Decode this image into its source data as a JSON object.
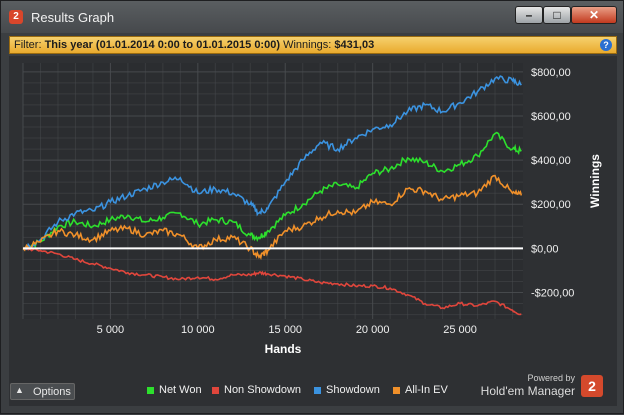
{
  "window": {
    "title": "Results Graph",
    "app_icon": "2",
    "controls": {
      "minimize": "–",
      "maximize": "□",
      "close": "✕"
    }
  },
  "filter": {
    "label": "Filter:",
    "value": "This year (01.01.2014 0:00 to 01.01.2015 0:00)",
    "winnings_label": "Winnings:",
    "winnings_value": "$431,03",
    "help_icon": "?"
  },
  "options_label": "Options",
  "brand": {
    "powered_by": "Powered by",
    "name": "Hold'em Manager",
    "badge": "2"
  },
  "colors": {
    "net_won": "#2de02d",
    "non_showdown": "#e0463c",
    "showdown": "#3b93e0",
    "all_in_ev": "#f0902a",
    "zero_line": "#ffffff",
    "grid": "#4a4d50",
    "accent_bar": "#f0b73c"
  },
  "chart_data": {
    "type": "line",
    "xlabel": "Hands",
    "ylabel": "Winnings",
    "xlim": [
      0,
      28600
    ],
    "ylim": [
      -320,
      840
    ],
    "x_ticks": [
      5000,
      10000,
      15000,
      20000,
      25000
    ],
    "x_tick_labels": [
      "5 000",
      "10 000",
      "15 000",
      "20 000",
      "25 000"
    ],
    "y_ticks": [
      -200,
      0,
      200,
      400,
      600,
      800
    ],
    "y_tick_labels": [
      "-$200,00",
      "$0,00",
      "$200,00",
      "$400,00",
      "$600,00",
      "$800,00"
    ],
    "grid": true,
    "legend_position": "bottom",
    "x": [
      0,
      1000,
      2000,
      3000,
      4000,
      5000,
      6000,
      7000,
      8000,
      9000,
      10000,
      11000,
      12000,
      13000,
      13500,
      14000,
      15000,
      16000,
      17000,
      18000,
      19000,
      20000,
      21000,
      22000,
      23000,
      24000,
      25000,
      26000,
      27000,
      28000,
      28500
    ],
    "series": [
      {
        "name": "Net Won",
        "color_key": "net_won",
        "values": [
          0,
          30,
          100,
          120,
          100,
          130,
          150,
          120,
          140,
          160,
          110,
          130,
          120,
          60,
          50,
          80,
          150,
          200,
          260,
          290,
          270,
          340,
          360,
          410,
          390,
          350,
          380,
          420,
          520,
          450,
          440
        ]
      },
      {
        "name": "Non Showdown",
        "color_key": "non_showdown",
        "values": [
          0,
          -10,
          -25,
          -50,
          -70,
          -90,
          -110,
          -120,
          -130,
          -140,
          -130,
          -140,
          -120,
          -120,
          -110,
          -115,
          -125,
          -140,
          -155,
          -160,
          -170,
          -170,
          -180,
          -210,
          -250,
          -270,
          -250,
          -260,
          -240,
          -280,
          -300
        ]
      },
      {
        "name": "Showdown",
        "color_key": "showdown",
        "values": [
          0,
          40,
          120,
          160,
          170,
          210,
          240,
          270,
          300,
          320,
          250,
          270,
          250,
          200,
          160,
          180,
          300,
          400,
          480,
          450,
          500,
          540,
          560,
          620,
          650,
          620,
          660,
          710,
          770,
          760,
          740
        ]
      },
      {
        "name": "All-In EV",
        "color_key": "all_in_ev",
        "values": [
          0,
          30,
          80,
          60,
          40,
          80,
          90,
          60,
          80,
          60,
          0,
          40,
          50,
          0,
          -40,
          -10,
          80,
          100,
          140,
          170,
          160,
          210,
          200,
          270,
          260,
          220,
          240,
          250,
          330,
          250,
          240
        ]
      }
    ]
  }
}
